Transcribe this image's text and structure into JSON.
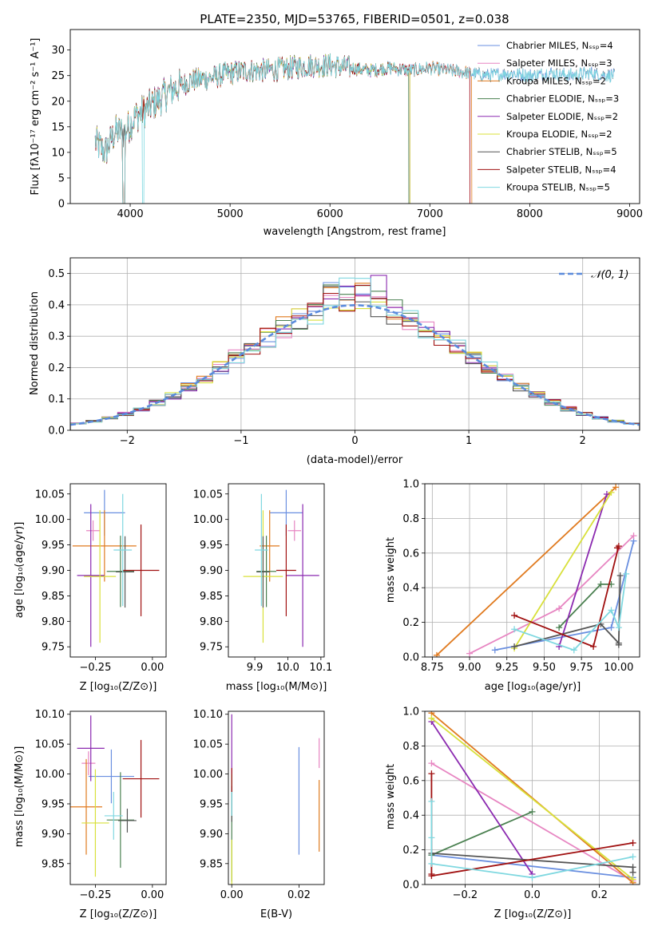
{
  "colors": {
    "chabrier_miles": "#6a8fe0",
    "salpeter_miles": "#e786c2",
    "kroupa_miles": "#e07a1f",
    "chabrier_elodie": "#4a8050",
    "salpeter_elodie": "#8b2ab0",
    "kroupa_elodie": "#d8e03a",
    "chabrier_stelib": "#555555",
    "salpeter_stelib": "#a01010",
    "kroupa_stelib": "#7fd8e0",
    "gaussian": "#5b8bdc",
    "grid": "#b0b0b0"
  },
  "chart_data": [
    {
      "id": "spectrum",
      "type": "line",
      "title": "PLATE=2350, MJD=53765, FIBERID=0501, z=0.038",
      "xlabel": "wavelength [Angstrom, rest frame]",
      "ylabel": "Flux [fλ10⁻¹⁷ erg cm⁻² s⁻¹ A⁻¹]",
      "xlim": [
        3400,
        9100
      ],
      "ylim": [
        0,
        34
      ],
      "xticks": [
        "4000",
        "5000",
        "6000",
        "7000",
        "8000",
        "9000"
      ],
      "yticks": [
        "0",
        "5",
        "10",
        "15",
        "20",
        "25",
        "30"
      ],
      "grid": false,
      "legend_position": "top-right",
      "legend": [
        "Chabrier MILES, N_SSP=4",
        "Salpeter MILES, N_SSP=3",
        "Kroupa MILES, N_SSP=2",
        "Chabrier ELODIE, N_SSP=3",
        "Salpeter ELODIE, N_SSP=2",
        "Kroupa ELODIE, N_SSP=2",
        "Chabrier STELIB, N_SSP=5",
        "Salpeter STELIB, N_SSP=4",
        "Kroupa STELIB, N_SSP=5"
      ],
      "continuum": [
        [
          3650,
          12
        ],
        [
          3750,
          10
        ],
        [
          3850,
          14
        ],
        [
          3950,
          14
        ],
        [
          4050,
          17
        ],
        [
          4200,
          19
        ],
        [
          4400,
          22
        ],
        [
          4600,
          24
        ],
        [
          4800,
          24.5
        ],
        [
          5000,
          25.5
        ],
        [
          5200,
          26
        ],
        [
          5400,
          26
        ],
        [
          5600,
          26.5
        ],
        [
          5800,
          27
        ],
        [
          6000,
          27
        ],
        [
          6200,
          26.5
        ],
        [
          6400,
          26
        ],
        [
          6600,
          26.5
        ],
        [
          6800,
          26
        ],
        [
          7000,
          26.5
        ],
        [
          7200,
          26
        ],
        [
          7400,
          25.5
        ],
        [
          7600,
          25
        ],
        [
          7800,
          25.5
        ],
        [
          8000,
          25
        ],
        [
          8200,
          25.5
        ],
        [
          8400,
          25
        ],
        [
          8600,
          25.5
        ],
        [
          8850,
          25
        ]
      ],
      "series_ranges": [
        [
          3650,
          8850
        ],
        [
          3650,
          7400
        ],
        [
          3650,
          7420
        ],
        [
          3650,
          6790
        ],
        [
          3650,
          6800
        ],
        [
          3650,
          6800
        ],
        [
          3650,
          8850
        ],
        [
          3650,
          7400
        ],
        [
          3650,
          8850
        ]
      ]
    },
    {
      "id": "residuals",
      "type": "histogram",
      "xlabel": "(data-model)/error",
      "ylabel": "Normed distribution",
      "xlim": [
        -2.5,
        2.5
      ],
      "ylim": [
        0,
        0.55
      ],
      "xticks": [
        "-2",
        "-1",
        "0",
        "1",
        "2"
      ],
      "yticks": [
        "0.0",
        "0.1",
        "0.2",
        "0.3",
        "0.4",
        "0.5"
      ],
      "grid": true,
      "legend_position": "top-right",
      "legend": [
        "𝒩(0, 1)"
      ],
      "bins": 36
    },
    {
      "id": "age_vs_z",
      "type": "errorbar",
      "xlabel": "Z [log₁₀(Z/Z⊙)]",
      "ylabel": "age  [log₁₀(age/yr)]",
      "xlim": [
        -0.36,
        0.06
      ],
      "ylim": [
        9.73,
        10.07
      ],
      "xticks": [
        "-0.25",
        "0.00"
      ],
      "yticks": [
        "9.75",
        "9.80",
        "9.85",
        "9.90",
        "9.95",
        "10.00",
        "10.05"
      ],
      "points": [
        {
          "x": -0.21,
          "y": 10.013,
          "xe": 0.09,
          "ye": 0.045
        },
        {
          "x": -0.26,
          "y": 9.978,
          "xe": 0.03,
          "ye": 0.02
        },
        {
          "x": -0.21,
          "y": 9.948,
          "xe": 0.14,
          "ye": 0.07
        },
        {
          "x": -0.14,
          "y": 9.898,
          "xe": 0.06,
          "ye": 0.07
        },
        {
          "x": -0.27,
          "y": 9.89,
          "xe": 0.06,
          "ye": 0.14
        },
        {
          "x": -0.23,
          "y": 9.888,
          "xe": 0.07,
          "ye": 0.13
        },
        {
          "x": -0.12,
          "y": 9.897,
          "xe": 0.04,
          "ye": 0.07
        },
        {
          "x": -0.05,
          "y": 9.9,
          "xe": 0.08,
          "ye": 0.09
        },
        {
          "x": -0.13,
          "y": 9.94,
          "xe": 0.04,
          "ye": 0.11
        }
      ]
    },
    {
      "id": "age_vs_mass",
      "type": "errorbar",
      "xlabel": "mass [log₁₀(M/M⊙)]",
      "ylabel": "",
      "xlim": [
        9.82,
        10.11
      ],
      "ylim": [
        9.73,
        10.07
      ],
      "xticks": [
        "9.9",
        "10.0",
        "10.1"
      ],
      "yticks": [
        "9.75",
        "9.80",
        "9.85",
        "9.90",
        "9.95",
        "10.00",
        "10.05"
      ],
      "points": [
        {
          "x": 9.995,
          "y": 10.013,
          "xe": 0.05,
          "ye": 0.045
        },
        {
          "x": 10.02,
          "y": 9.978,
          "xe": 0.02,
          "ye": 0.02
        },
        {
          "x": 9.945,
          "y": 9.948,
          "xe": 0.03,
          "ye": 0.07
        },
        {
          "x": 9.935,
          "y": 9.898,
          "xe": 0.03,
          "ye": 0.07
        },
        {
          "x": 10.045,
          "y": 9.89,
          "xe": 0.05,
          "ye": 0.14
        },
        {
          "x": 9.925,
          "y": 9.888,
          "xe": 0.06,
          "ye": 0.13
        },
        {
          "x": 9.925,
          "y": 9.897,
          "xe": 0.02,
          "ye": 0.07
        },
        {
          "x": 9.995,
          "y": 9.9,
          "xe": 0.03,
          "ye": 0.09
        },
        {
          "x": 9.92,
          "y": 9.94,
          "xe": 0.02,
          "ye": 0.11
        }
      ]
    },
    {
      "id": "mass_vs_z",
      "type": "errorbar",
      "xlabel": "Z [log₁₀(Z/Z⊙)]",
      "ylabel": "mass [log₁₀(M/M⊙)]",
      "xlim": [
        -0.36,
        0.06
      ],
      "ylim": [
        9.815,
        10.105
      ],
      "xticks": [
        "-0.25",
        "0.00"
      ],
      "yticks": [
        "9.85",
        "9.90",
        "9.95",
        "10.00",
        "10.05",
        "10.10"
      ],
      "points": [
        {
          "x": -0.18,
          "y": 9.996,
          "xe": 0.1,
          "ye": 0.045
        },
        {
          "x": -0.28,
          "y": 10.018,
          "xe": 0.03,
          "ye": 0.02
        },
        {
          "x": -0.29,
          "y": 9.945,
          "xe": 0.07,
          "ye": 0.08
        },
        {
          "x": -0.14,
          "y": 9.923,
          "xe": 0.06,
          "ye": 0.08
        },
        {
          "x": -0.27,
          "y": 10.043,
          "xe": 0.06,
          "ye": 0.055
        },
        {
          "x": -0.25,
          "y": 9.918,
          "xe": 0.06,
          "ye": 0.09
        },
        {
          "x": -0.11,
          "y": 9.922,
          "xe": 0.04,
          "ye": 0.02
        },
        {
          "x": -0.05,
          "y": 9.992,
          "xe": 0.08,
          "ye": 0.065
        },
        {
          "x": -0.17,
          "y": 9.93,
          "xe": 0.04,
          "ye": 0.04
        }
      ]
    },
    {
      "id": "mass_vs_ebv",
      "type": "errorbar",
      "xlabel": "E(B-V)",
      "ylabel": "",
      "xlim": [
        -0.001,
        0.0275
      ],
      "ylim": [
        9.815,
        10.105
      ],
      "xticks": [
        "0.00",
        "0.02"
      ],
      "yticks": [
        "9.85",
        "9.90",
        "9.95",
        "10.00",
        "10.05",
        "10.10"
      ],
      "points": [
        {
          "x": 0.02,
          "y": 9.955,
          "xe": 0,
          "ye": 0.09
        },
        {
          "x": 0.026,
          "y": 10.035,
          "xe": 0,
          "ye": 0.025
        },
        {
          "x": 0.026,
          "y": 9.93,
          "xe": 0,
          "ye": 0.06
        },
        {
          "x": 0.0,
          "y": 9.91,
          "xe": 0,
          "ye": 0.09
        },
        {
          "x": 0.0,
          "y": 10.05,
          "xe": 0,
          "ye": 0.05
        },
        {
          "x": 0.0,
          "y": 9.85,
          "xe": 0,
          "ye": 0.04
        },
        {
          "x": 0.0,
          "y": 9.95,
          "xe": 0,
          "ye": 0.03
        },
        {
          "x": 0.0,
          "y": 9.99,
          "xe": 0,
          "ye": 0.02
        },
        {
          "x": 0.0,
          "y": 9.95,
          "xe": 0,
          "ye": 0.02
        }
      ]
    },
    {
      "id": "weight_vs_age",
      "type": "line",
      "xlabel": "age  [log₁₀(age/yr)]",
      "ylabel": "mass weight",
      "xlim": [
        8.7,
        10.14
      ],
      "ylim": [
        0,
        1
      ],
      "xticks": [
        "8.75",
        "9.00",
        "9.25",
        "9.50",
        "9.75",
        "10.00"
      ],
      "yticks": [
        "0.0",
        "0.2",
        "0.4",
        "0.6",
        "0.8",
        "1.0"
      ],
      "grid": true,
      "series": [
        {
          "x": [
            9.17,
            9.95,
            10.1
          ],
          "y": [
            0.04,
            0.17,
            0.67
          ]
        },
        {
          "x": [
            9.0,
            9.6,
            10.1
          ],
          "y": [
            0.02,
            0.28,
            0.7
          ]
        },
        {
          "x": [
            8.78,
            9.98
          ],
          "y": [
            0.01,
            0.98
          ]
        },
        {
          "x": [
            9.6,
            9.88,
            9.95
          ],
          "y": [
            0.17,
            0.42,
            0.42
          ]
        },
        {
          "x": [
            9.6,
            9.92
          ],
          "y": [
            0.06,
            0.94
          ]
        },
        {
          "x": [
            9.3,
            9.95
          ],
          "y": [
            0.05,
            0.95
          ]
        },
        {
          "x": [
            9.3,
            9.88,
            10.0,
            10.01,
            10.0
          ],
          "y": [
            0.06,
            0.19,
            0.08,
            0.47,
            0.07
          ]
        },
        {
          "x": [
            9.3,
            9.83,
            10.0,
            9.99
          ],
          "y": [
            0.24,
            0.06,
            0.64,
            0.63
          ]
        },
        {
          "x": [
            9.3,
            9.7,
            9.95,
            10.0,
            10.05
          ],
          "y": [
            0.16,
            0.04,
            0.27,
            0.17,
            0.48
          ]
        }
      ]
    },
    {
      "id": "weight_vs_z",
      "type": "line",
      "xlabel": "Z [log₁₀(Z/Z⊙)]",
      "ylabel": "mass weight",
      "xlim": [
        -0.32,
        0.32
      ],
      "ylim": [
        0,
        1
      ],
      "xticks": [
        "-0.2",
        "0.0",
        "0.2"
      ],
      "yticks": [
        "0.0",
        "0.2",
        "0.4",
        "0.6",
        "0.8",
        "1.0"
      ],
      "grid": true,
      "series": [
        {
          "x": [
            -0.3,
            0.3
          ],
          "y": [
            0.17,
            0.04
          ]
        },
        {
          "x": [
            -0.3,
            0.3
          ],
          "y": [
            0.7,
            0.02
          ]
        },
        {
          "x": [
            -0.3,
            0.3
          ],
          "y": [
            0.99,
            0.01
          ]
        },
        {
          "x": [
            -0.3,
            0.0
          ],
          "y": [
            0.17,
            0.42
          ]
        },
        {
          "x": [
            -0.3,
            0.0
          ],
          "y": [
            0.94,
            0.06
          ]
        },
        {
          "x": [
            -0.3,
            0.3
          ],
          "y": [
            0.96,
            0.03
          ]
        },
        {
          "x": [
            -0.3,
            0.3,
            0.3
          ],
          "y": [
            0.18,
            0.1,
            0.07
          ]
        },
        {
          "x": [
            -0.3,
            -0.3,
            -0.3,
            0.3
          ],
          "y": [
            0.64,
            0.06,
            0.05,
            0.24
          ]
        },
        {
          "x": [
            -0.3,
            -0.3,
            -0.3,
            0.0,
            0.3
          ],
          "y": [
            0.48,
            0.27,
            0.12,
            0.04,
            0.16
          ]
        }
      ]
    }
  ]
}
